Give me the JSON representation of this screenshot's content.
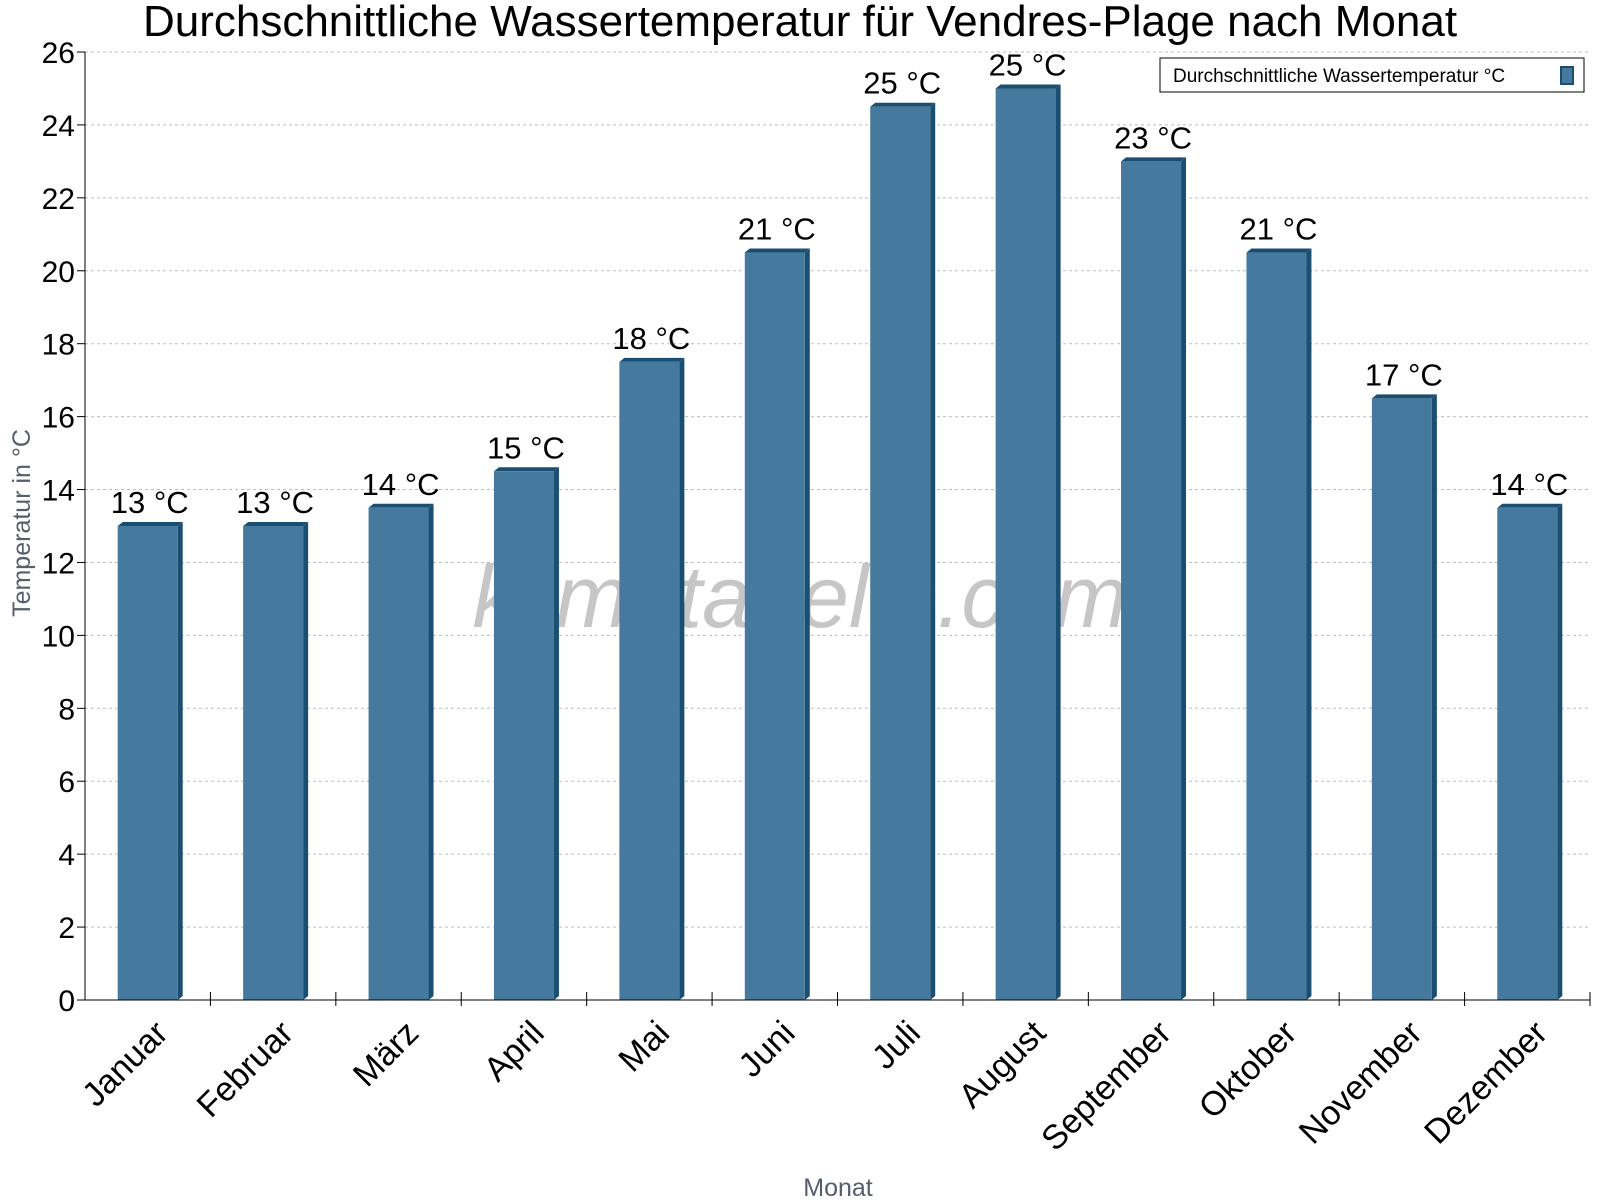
{
  "chart_data": {
    "type": "bar",
    "title": "Durchschnittliche Wassertemperatur für Vendres-Plage nach Monat",
    "xlabel": "Monat",
    "ylabel": "Temperatur in °C",
    "categories": [
      "Januar",
      "Februar",
      "März",
      "April",
      "Mai",
      "Juni",
      "Juli",
      "August",
      "September",
      "Oktober",
      "November",
      "Dezember"
    ],
    "series": [
      {
        "name": "Durchschnittliche Wassertemperatur °C",
        "values": [
          13.0,
          13.0,
          13.5,
          14.5,
          17.5,
          20.5,
          24.5,
          25.0,
          23.0,
          20.5,
          16.5,
          13.5
        ],
        "data_labels": [
          "13 °C",
          "13 °C",
          "14 °C",
          "15 °C",
          "18 °C",
          "21 °C",
          "25 °C",
          "25 °C",
          "23 °C",
          "21 °C",
          "17 °C",
          "14 °C"
        ],
        "color": "#457a9e",
        "shade_color": "#1b4f72"
      }
    ],
    "ylim": [
      0,
      26
    ],
    "yticks": [
      "0",
      "2",
      "4",
      "6",
      "8",
      "10",
      "12",
      "14",
      "16",
      "18",
      "20",
      "22",
      "24",
      "26"
    ],
    "grid": true,
    "legend_position": "top-right",
    "watermark": "klimatabelle.com"
  }
}
